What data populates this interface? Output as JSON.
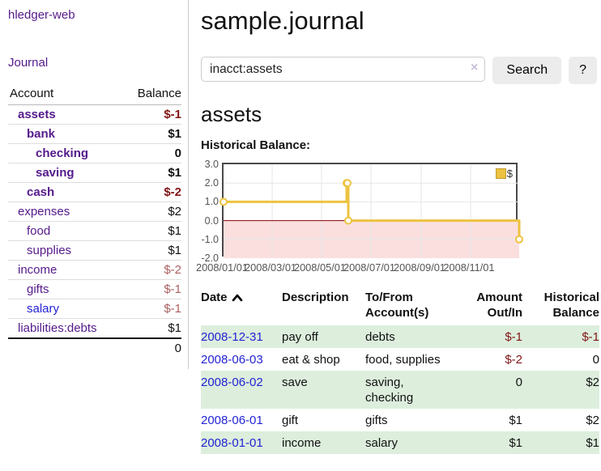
{
  "sidebar": {
    "brand": "hledger-web",
    "journal_link": "Journal",
    "accounts_table": {
      "account_header": "Account",
      "balance_header": "Balance",
      "rows": [
        {
          "name": "assets",
          "balance": "$-1"
        },
        {
          "name": "bank",
          "balance": "$1"
        },
        {
          "name": "checking",
          "balance": "0"
        },
        {
          "name": "saving",
          "balance": "$1"
        },
        {
          "name": "cash",
          "balance": "$-2"
        },
        {
          "name": "expenses",
          "balance": "$2"
        },
        {
          "name": "food",
          "balance": "$1"
        },
        {
          "name": "supplies",
          "balance": "$1"
        },
        {
          "name": "income",
          "balance": "$-2"
        },
        {
          "name": "gifts",
          "balance": "$-1"
        },
        {
          "name": "salary",
          "balance": "$-1"
        },
        {
          "name": "liabilities:debts",
          "balance": "$1"
        }
      ],
      "total": "0"
    }
  },
  "main": {
    "title": "sample.journal",
    "search": {
      "value": "inacct:assets",
      "clear_icon": "×",
      "button_label": "Search",
      "help_label": "?"
    },
    "account_heading": "assets",
    "chart_heading": "Historical Balance:"
  },
  "chart_data": {
    "type": "line",
    "title": "Historical Balance:",
    "series": [
      {
        "name": "$",
        "color": "#edc240",
        "steps": true,
        "points": [
          {
            "date": "2008/01/01",
            "x": 0.0,
            "y": 1
          },
          {
            "date": "2008/06/01",
            "x": 0.4164,
            "y": 2
          },
          {
            "date": "2008/06/02",
            "x": 0.4192,
            "y": 2
          },
          {
            "date": "2008/06/03",
            "x": 0.4219,
            "y": 0
          },
          {
            "date": "2008/12/31",
            "x": 1.0,
            "y": -1
          }
        ]
      }
    ],
    "ylim": [
      -2.0,
      3.0
    ],
    "yticks": [
      3.0,
      2.0,
      1.0,
      0.0,
      -1.0,
      -2.0
    ],
    "xticks": [
      {
        "label": "2008/01/01",
        "x": 0.0
      },
      {
        "label": "2008/03/01",
        "x": 0.1645
      },
      {
        "label": "2008/05/01",
        "x": 0.3315
      },
      {
        "label": "2008/07/01",
        "x": 0.4986
      },
      {
        "label": "2008/09/01",
        "x": 0.6685
      },
      {
        "label": "2008/11/01",
        "x": 0.8356
      }
    ],
    "grid": true,
    "grid_color": "#e6e6e6",
    "border_color": "#4a4a4a",
    "negative_region_color": "#fbdfdf",
    "zero_line_color": "#8b0000",
    "legend": {
      "label": "$",
      "swatch_color": "#edc240",
      "position": "top-right"
    }
  },
  "register_table": {
    "headers": {
      "date": "Date",
      "description": "Description",
      "accounts": "To/From Account(s)",
      "amount": "Amount Out/In",
      "balance": "Historical Balance"
    },
    "rows": [
      {
        "date": "2008-12-31",
        "description": "pay off",
        "accounts": "debts",
        "amount": "$-1",
        "balance": "$-1"
      },
      {
        "date": "2008-06-03",
        "description": "eat & shop",
        "accounts": "food, supplies",
        "amount": "$-2",
        "balance": "0"
      },
      {
        "date": "2008-06-02",
        "description": "save",
        "accounts": "saving, checking",
        "amount": "0",
        "balance": "$2"
      },
      {
        "date": "2008-06-01",
        "description": "gift",
        "accounts": "gifts",
        "amount": "$1",
        "balance": "$2"
      },
      {
        "date": "2008-01-01",
        "description": "income",
        "accounts": "salary",
        "amount": "$1",
        "balance": "$1"
      }
    ]
  }
}
